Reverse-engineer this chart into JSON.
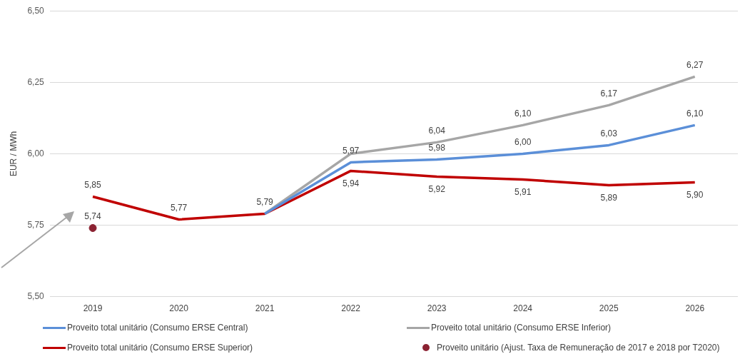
{
  "chart_data": {
    "type": "line",
    "ylabel": "EUR / MWh",
    "categories": [
      "2019",
      "2020",
      "2021",
      "2022",
      "2023",
      "2024",
      "2025",
      "2026"
    ],
    "series": [
      {
        "name": "Proveito total unitário (Consumo ERSE Central)",
        "color": "#5b8fd8",
        "values": [
          null,
          null,
          5.79,
          5.97,
          5.98,
          6.0,
          6.03,
          6.1
        ],
        "value_labels": [
          null,
          null,
          null,
          "5,97",
          "5,98",
          "6,00",
          "6,03",
          "6,10"
        ]
      },
      {
        "name": "Proveito total unitário (Consumo ERSE Inferior)",
        "color": "#a6a6a6",
        "values": [
          null,
          null,
          5.79,
          6.0,
          6.04,
          6.1,
          6.17,
          6.27
        ],
        "value_labels": [
          null,
          null,
          null,
          null,
          "6,04",
          "6,10",
          "6,17",
          "6,27"
        ]
      },
      {
        "name": "Proveito total unitário (Consumo ERSE Superior)",
        "color": "#c00000",
        "values": [
          5.85,
          5.77,
          5.79,
          5.94,
          5.92,
          5.91,
          5.89,
          5.9
        ],
        "value_labels": [
          "5,85",
          "5,77",
          "5,79",
          "5,94",
          "5,92",
          "5,91",
          "5,89",
          "5,90"
        ]
      },
      {
        "name": "Proveito unitário (Ajust. Taxa de Remuneração de 2017 e 2018 por T2020)",
        "type": "scatter",
        "marker": "circle",
        "color": "#8b2232",
        "values": [
          5.74,
          null,
          null,
          null,
          null,
          null,
          null,
          null
        ],
        "value_labels": [
          "5,74",
          null,
          null,
          null,
          null,
          null,
          null,
          null
        ]
      }
    ],
    "ylim": [
      5.5,
      6.5
    ],
    "yticks": [
      {
        "value": 5.5,
        "label": "5,50"
      },
      {
        "value": 5.75,
        "label": "5,75"
      },
      {
        "value": 6.0,
        "label": "6,00"
      },
      {
        "value": 6.25,
        "label": "6,25"
      },
      {
        "value": 6.5,
        "label": "6,50"
      }
    ],
    "grid": "y",
    "legend": "bottom",
    "marker": "none",
    "line_style": "solid"
  }
}
